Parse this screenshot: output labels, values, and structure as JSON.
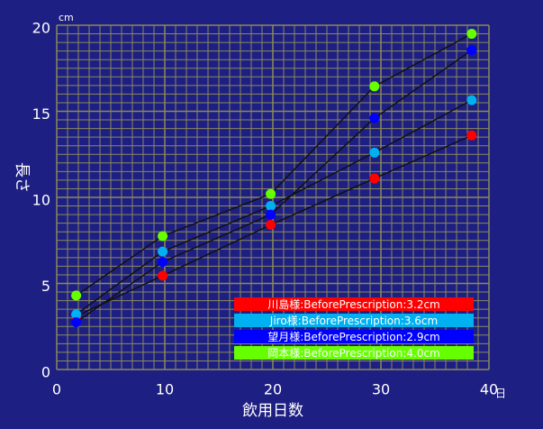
{
  "chart_data": {
    "type": "line",
    "x_label": "飲用日数",
    "y_label": "長さ",
    "x_unit": "日",
    "y_unit": "cm",
    "x": [
      1.8,
      9.8,
      19.8,
      29.4,
      38.4
    ],
    "series": [
      {
        "name": "川島様:BeforePrescription:3.2cm",
        "color": "#ff0000",
        "values": [
          3.1,
          5.45,
          8.4,
          11.1,
          13.6
        ]
      },
      {
        "name": "Jiro様:BeforePrescription:3.6cm",
        "color": "#00b0f0",
        "values": [
          3.2,
          6.85,
          9.5,
          12.6,
          15.65
        ]
      },
      {
        "name": "望月様:BeforePrescription:2.9cm",
        "color": "#0000ff",
        "values": [
          2.75,
          6.25,
          9.0,
          14.6,
          18.55
        ]
      },
      {
        "name": "岡本様:BeforePrescription:4.0cm",
        "color": "#66ff00",
        "values": [
          4.3,
          7.75,
          10.2,
          16.45,
          19.5
        ]
      }
    ],
    "line_color": "#111111",
    "xlim": [
      0,
      40
    ],
    "xticks": [
      0,
      10,
      20,
      30,
      40
    ],
    "ylim": [
      0,
      20
    ],
    "yticks": [
      0,
      5,
      10,
      15,
      20
    ],
    "grid": true,
    "grid_color": "#8c8a5a",
    "legend": "lower right"
  }
}
